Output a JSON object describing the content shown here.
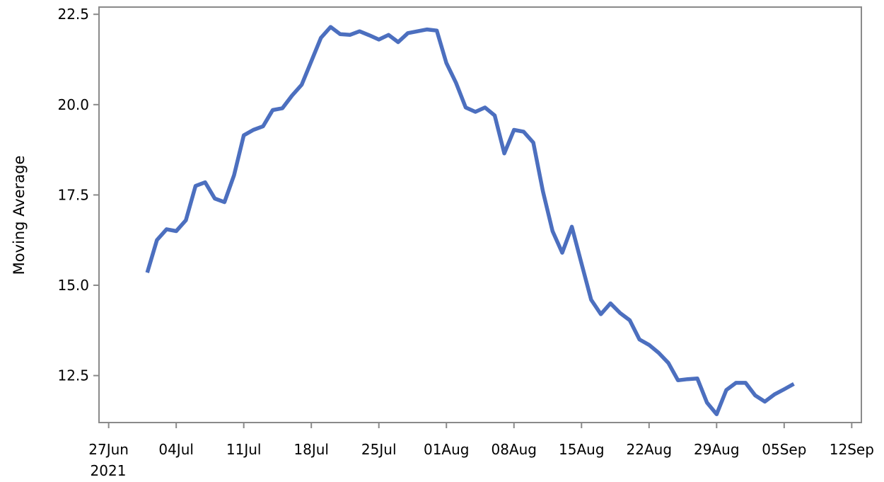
{
  "chart_data": {
    "type": "line",
    "title": "",
    "xlabel": "",
    "ylabel": "Moving Average",
    "x_ticks": [
      "27Jun",
      "04Jul",
      "11Jul",
      "18Jul",
      "25Jul",
      "01Aug",
      "08Aug",
      "15Aug",
      "22Aug",
      "29Aug",
      "05Sep",
      "12Sep"
    ],
    "x_year_label": "2021",
    "xlim": [
      "2021-06-26",
      "2021-09-13"
    ],
    "ylim": [
      11.2,
      22.7
    ],
    "y_ticks": [
      "12.5",
      "15.0",
      "17.5",
      "20.0",
      "22.5"
    ],
    "grid": false,
    "line_color": "#4c6fbf",
    "series": [
      {
        "x": [
          "2021-07-01",
          "2021-07-02",
          "2021-07-03",
          "2021-07-04",
          "2021-07-05",
          "2021-07-06",
          "2021-07-07",
          "2021-07-08",
          "2021-07-09",
          "2021-07-10",
          "2021-07-11",
          "2021-07-12",
          "2021-07-13",
          "2021-07-14",
          "2021-07-15",
          "2021-07-16",
          "2021-07-17",
          "2021-07-18",
          "2021-07-19",
          "2021-07-20",
          "2021-07-21",
          "2021-07-22",
          "2021-07-23",
          "2021-07-24",
          "2021-07-25",
          "2021-07-26",
          "2021-07-27",
          "2021-07-28",
          "2021-07-29",
          "2021-07-30",
          "2021-07-31",
          "2021-08-01",
          "2021-08-02",
          "2021-08-03",
          "2021-08-04",
          "2021-08-05",
          "2021-08-06",
          "2021-08-07",
          "2021-08-08",
          "2021-08-09",
          "2021-08-10",
          "2021-08-11",
          "2021-08-12",
          "2021-08-13",
          "2021-08-14",
          "2021-08-15",
          "2021-08-16",
          "2021-08-17",
          "2021-08-18",
          "2021-08-19",
          "2021-08-20",
          "2021-08-21",
          "2021-08-22",
          "2021-08-23",
          "2021-08-24",
          "2021-08-25",
          "2021-08-26",
          "2021-08-27",
          "2021-08-28",
          "2021-08-29",
          "2021-08-30",
          "2021-08-31",
          "2021-09-01",
          "2021-09-02",
          "2021-09-03",
          "2021-09-04",
          "2021-09-05",
          "2021-09-06"
        ],
        "y": [
          15.35,
          16.25,
          16.55,
          16.5,
          16.8,
          17.75,
          17.85,
          17.4,
          17.3,
          18.05,
          19.15,
          19.3,
          19.4,
          19.85,
          19.9,
          20.25,
          20.55,
          21.2,
          21.85,
          22.15,
          21.95,
          21.93,
          22.03,
          21.92,
          21.8,
          21.93,
          21.73,
          21.98,
          22.03,
          22.08,
          22.05,
          21.15,
          20.6,
          19.92,
          19.8,
          19.92,
          19.7,
          18.65,
          19.3,
          19.25,
          18.95,
          17.6,
          16.5,
          15.9,
          16.62,
          15.6,
          14.6,
          14.2,
          14.5,
          14.23,
          14.03,
          13.5,
          13.35,
          13.13,
          12.85,
          12.37,
          12.4,
          12.42,
          11.75,
          11.43,
          12.1,
          12.3,
          12.3,
          11.95,
          11.78,
          11.98,
          12.12,
          12.27
        ]
      }
    ]
  }
}
